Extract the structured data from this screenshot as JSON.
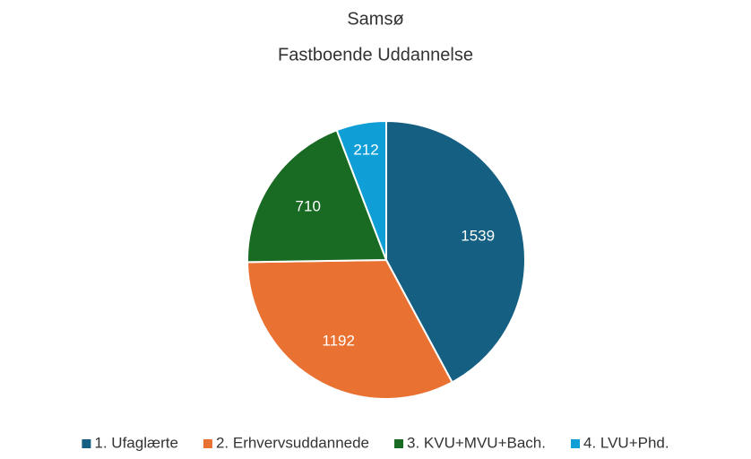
{
  "chart_data": {
    "type": "pie",
    "title": "Samsø",
    "subtitle": "Fastboende Uddannelse",
    "categories": [
      "1. Ufaglærte",
      "2. Erhvervsuddannede",
      "3. KVU+MVU+Bach.",
      "4. LVU+Phd."
    ],
    "values": [
      1539,
      1192,
      710,
      212
    ],
    "colors": [
      "#156082",
      "#e97132",
      "#196b24",
      "#0f9ed5"
    ],
    "legend": "bottom"
  }
}
